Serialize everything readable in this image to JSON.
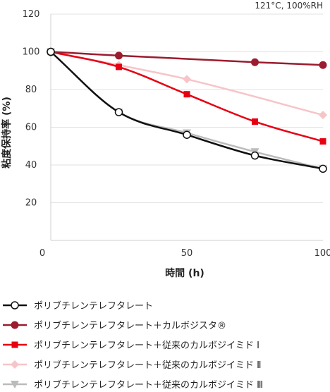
{
  "chart_data": {
    "type": "line",
    "annotation": "121°C, 100%RH",
    "xlabel": "時間 (h)",
    "ylabel": "粘度保持率 (%)",
    "xlim": [
      0,
      100
    ],
    "ylim": [
      0,
      120
    ],
    "x_ticks": [
      0,
      50,
      100
    ],
    "y_ticks": [
      20,
      40,
      60,
      80,
      100,
      120
    ],
    "grid": "horizontal",
    "legend_position": "bottom",
    "series": [
      {
        "name": "ポリブチレンテレフタレート",
        "color": "#111111",
        "marker": "circle-open",
        "x": [
          0,
          25,
          50,
          75,
          100
        ],
        "y": [
          100,
          68,
          56,
          45,
          38
        ]
      },
      {
        "name": "ポリブチレンテレフタレート＋カルボジスタ®",
        "color": "#9b1c2e",
        "marker": "circle-filled",
        "x": [
          0,
          25,
          75,
          100
        ],
        "y": [
          100,
          98,
          94.5,
          93
        ]
      },
      {
        "name": "ポリブチレンテレフタレート＋従来のカルボジイミド Ⅰ",
        "color": "#e60012",
        "marker": "square",
        "x": [
          0,
          25,
          50,
          75,
          100
        ],
        "y": [
          100,
          92,
          77.5,
          63,
          52.5
        ]
      },
      {
        "name": "ポリブチレンテレフタレート＋従来のカルボジイミド Ⅱ",
        "color": "#f7c4c8",
        "marker": "diamond",
        "x": [
          0,
          25,
          50,
          100
        ],
        "y": [
          100,
          93,
          85.5,
          66.5
        ]
      },
      {
        "name": "ポリブチレンテレフタレート＋従来のカルボジイミド Ⅲ",
        "color": "#bbbbbb",
        "marker": "triangle-down",
        "x": [
          0,
          25,
          50,
          75,
          100
        ],
        "y": [
          100,
          68,
          57,
          47,
          38
        ]
      }
    ]
  }
}
